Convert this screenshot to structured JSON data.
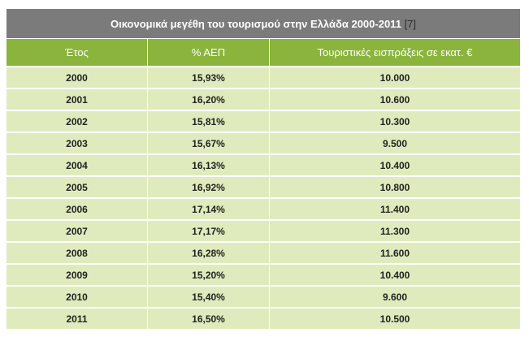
{
  "table": {
    "title": "Οικονομικά μεγέθη του τουρισμού στην Ελλάδα 2000-2011",
    "reference": "[7]",
    "columns": [
      "Έτος",
      "% ΑΕΠ",
      "Τουριστικές εισπράξεις σε εκατ. €"
    ],
    "rows": [
      [
        "2000",
        "15,93%",
        "10.000"
      ],
      [
        "2001",
        "16,20%",
        "10.600"
      ],
      [
        "2002",
        "15,81%",
        "10.300"
      ],
      [
        "2003",
        "15,67%",
        "9.500"
      ],
      [
        "2004",
        "16,13%",
        "10.400"
      ],
      [
        "2005",
        "16,92%",
        "10.800"
      ],
      [
        "2006",
        "17,14%",
        "11.400"
      ],
      [
        "2007",
        "17,17%",
        "11.300"
      ],
      [
        "2008",
        "16,28%",
        "11.600"
      ],
      [
        "2009",
        "15,20%",
        "10.400"
      ],
      [
        "2010",
        "15,40%",
        "9.600"
      ],
      [
        "2011",
        "16,50%",
        "10.500"
      ]
    ]
  },
  "colors": {
    "title_bg": "#7b7b7b",
    "header_bg": "#8ab43c",
    "row_bg": "#dfebbd"
  }
}
